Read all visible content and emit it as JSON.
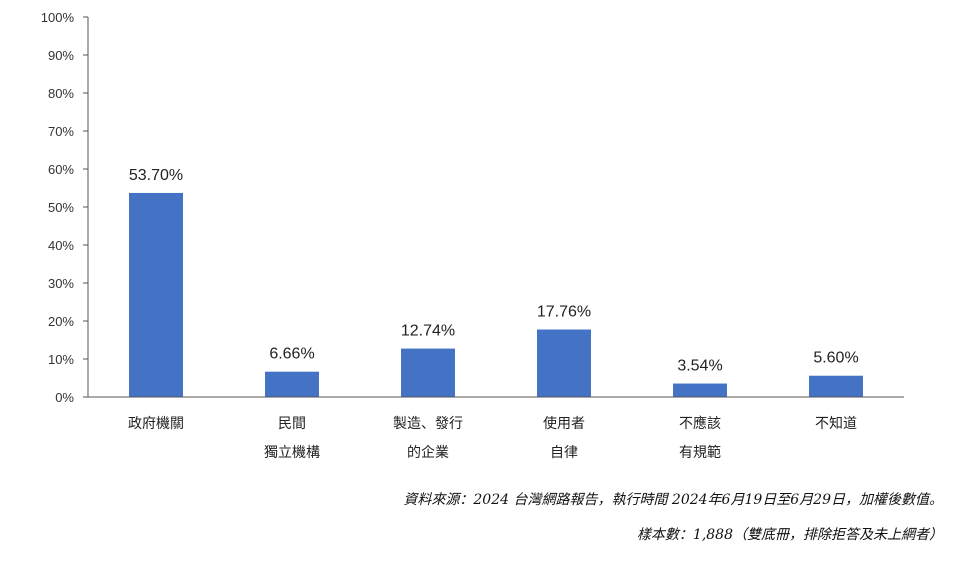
{
  "chart_data": {
    "type": "bar",
    "categories": [
      [
        "政府機關"
      ],
      [
        "民間",
        "獨立機構"
      ],
      [
        "製造、發行",
        "的企業"
      ],
      [
        "使用者",
        "自律"
      ],
      [
        "不應該",
        "有規範"
      ],
      [
        "不知道"
      ]
    ],
    "values": [
      53.7,
      6.66,
      12.74,
      17.76,
      3.54,
      5.6
    ],
    "value_labels": [
      "53.70%",
      "6.66%",
      "12.74%",
      "17.76%",
      "3.54%",
      "5.60%"
    ],
    "y_ticks": [
      "0%",
      "10%",
      "20%",
      "30%",
      "40%",
      "50%",
      "60%",
      "70%",
      "80%",
      "90%",
      "100%"
    ],
    "ylim": [
      0,
      100
    ],
    "grid": false,
    "bar_color": "#4472C4",
    "axis_color": "#555555"
  },
  "notes": {
    "source": "資料來源：2024  台灣網路報告，執行時間 2024年6月19日至6月29日，加權後數值。",
    "sample": "樣本數：1,888（雙底冊，排除拒答及未上網者）"
  }
}
